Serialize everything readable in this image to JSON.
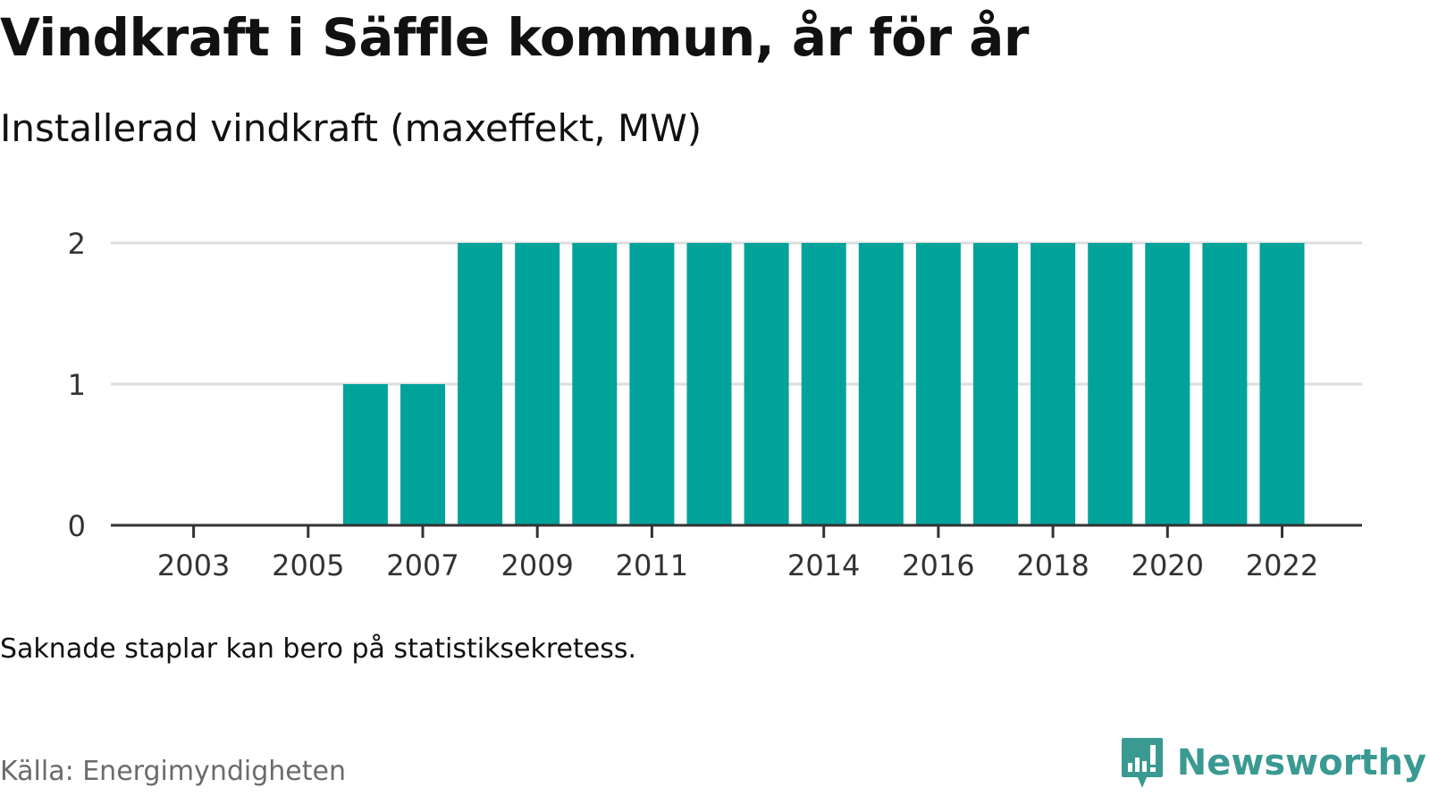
{
  "title": "Vindkraft i Säffle kommun, år för år",
  "subtitle": "Installerad vindkraft (maxeffekt, MW)",
  "note": "Saknade staplar kan bero på statistiksekretess.",
  "source": "Källa: Energimyndigheten",
  "brand": {
    "name": "Newsworthy",
    "icon": "newsworthy-logo-icon",
    "color": "#3a9a92"
  },
  "colors": {
    "bar": "#00a39a",
    "grid": "#dddddd",
    "axis": "#333333",
    "tick_text": "#333333"
  },
  "chart_data": {
    "type": "bar",
    "title": "Vindkraft i Säffle kommun, år för år",
    "subtitle": "Installerad vindkraft (maxeffekt, MW)",
    "xlabel": "",
    "ylabel": "",
    "categories": [
      2002,
      2003,
      2004,
      2005,
      2006,
      2007,
      2008,
      2009,
      2010,
      2011,
      2012,
      2013,
      2014,
      2015,
      2016,
      2017,
      2018,
      2019,
      2020,
      2021,
      2022
    ],
    "values": [
      null,
      null,
      null,
      null,
      1,
      1,
      2,
      2,
      2,
      2,
      2,
      2,
      2,
      2,
      2,
      2,
      2,
      2,
      2,
      2,
      2
    ],
    "x_tick_labels": [
      "2003",
      "2005",
      "2007",
      "2009",
      "2011",
      "2014",
      "2016",
      "2018",
      "2020",
      "2022"
    ],
    "y_ticks": [
      0,
      1,
      2
    ],
    "ylim": [
      0,
      2
    ],
    "grid": true,
    "legend": "none"
  }
}
